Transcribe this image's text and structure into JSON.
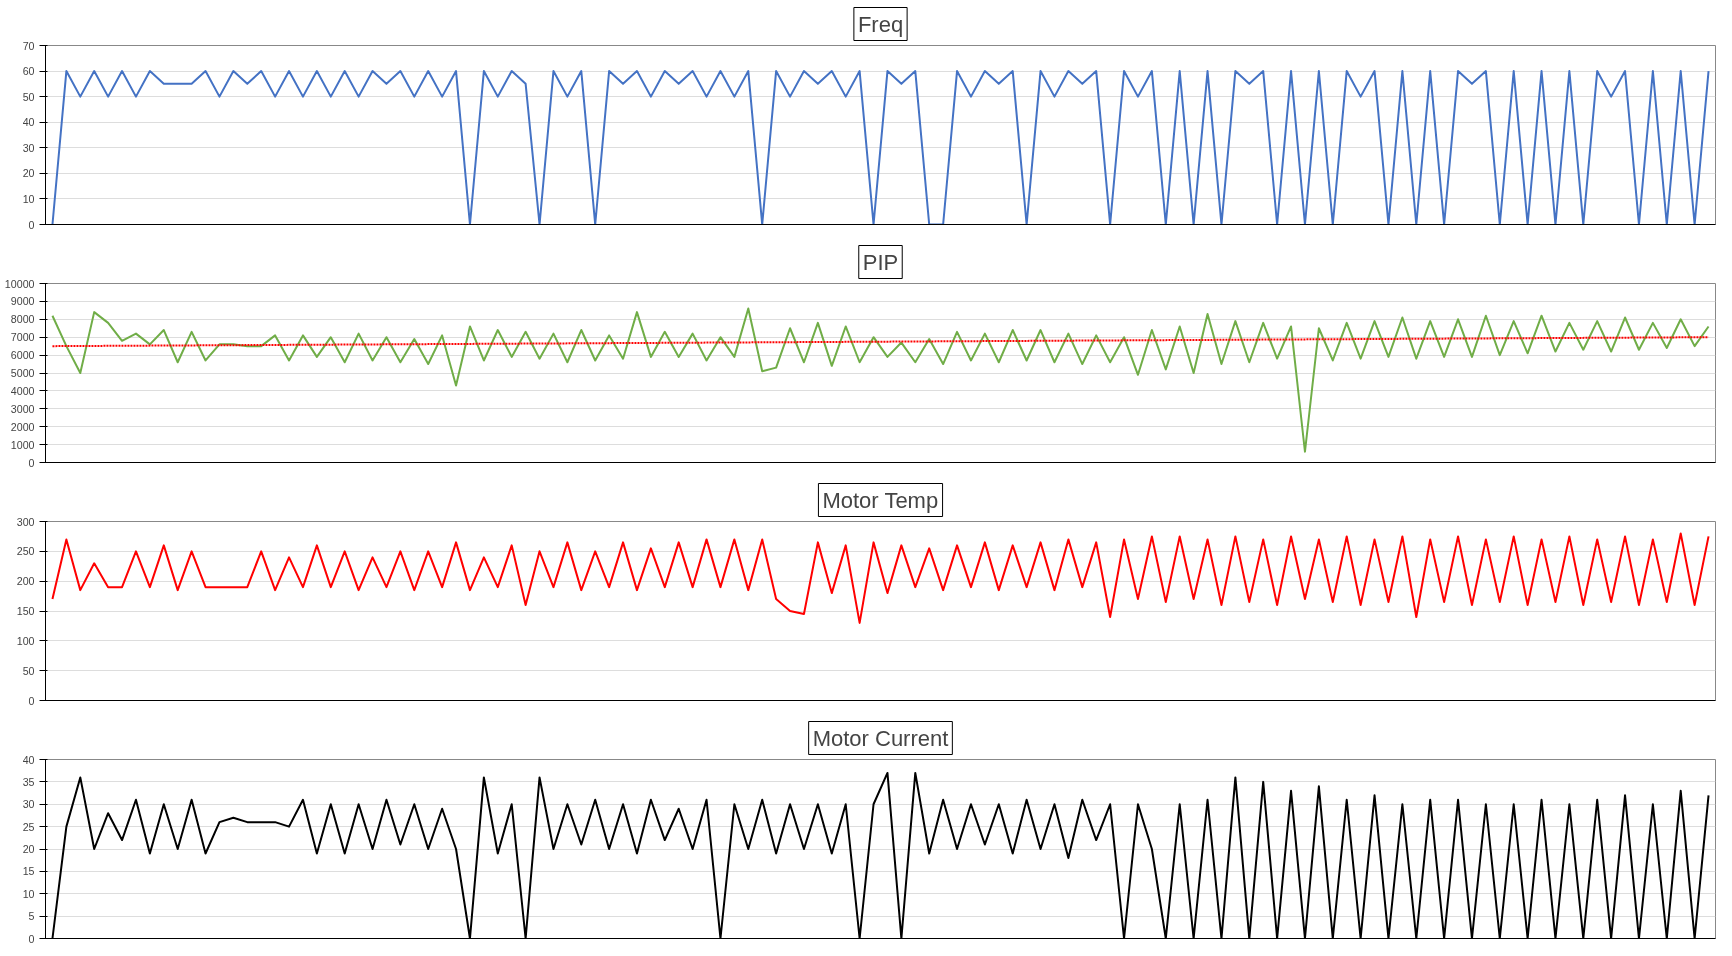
{
  "chart_data": [
    {
      "type": "line",
      "title": "Freq",
      "categories": [
        null,
        null,
        null,
        null,
        null,
        null,
        null,
        null,
        null,
        null,
        null,
        null,
        null,
        null,
        null,
        null,
        null,
        null,
        null,
        null,
        null,
        null,
        null,
        null,
        null,
        null,
        null,
        null,
        null,
        null,
        null,
        null,
        null,
        null,
        null,
        null,
        null,
        null,
        null,
        null,
        null,
        null,
        null,
        null,
        null,
        null,
        null,
        null,
        null,
        null,
        null,
        null,
        null,
        null,
        null,
        null,
        null,
        null,
        null,
        null,
        null,
        null,
        null,
        null,
        null,
        null,
        null,
        null,
        null,
        null,
        null,
        null,
        null,
        null,
        null,
        null,
        null,
        null,
        null,
        null,
        null,
        null,
        null,
        null,
        null,
        null,
        null,
        null,
        null,
        null,
        null,
        null,
        null,
        null,
        null,
        null,
        null,
        null,
        null,
        null,
        null,
        null,
        null,
        null,
        null,
        null,
        null,
        null,
        null,
        null,
        null,
        null,
        null,
        null,
        null,
        null,
        null,
        null,
        null,
        null
      ],
      "series": [
        {
          "color": "#4472c4",
          "values": [
            0,
            60,
            50,
            60,
            50,
            60,
            50,
            60,
            55,
            55,
            55,
            60,
            50,
            60,
            55,
            60,
            50,
            60,
            50,
            60,
            50,
            60,
            50,
            60,
            55,
            60,
            50,
            60,
            50,
            60,
            0,
            60,
            50,
            60,
            55,
            0,
            60,
            50,
            60,
            0,
            60,
            55,
            60,
            50,
            60,
            55,
            60,
            50,
            60,
            50,
            60,
            0,
            60,
            50,
            60,
            55,
            60,
            50,
            60,
            0,
            60,
            55,
            60,
            0,
            0,
            60,
            50,
            60,
            55,
            60,
            0,
            60,
            50,
            60,
            55,
            60,
            0,
            60,
            50,
            60,
            0,
            60,
            0,
            60,
            0,
            60,
            55,
            60,
            0,
            60,
            0,
            60,
            0,
            60,
            50,
            60,
            0,
            60,
            0,
            60,
            0,
            60,
            55,
            60,
            0,
            60,
            0,
            60,
            0,
            60,
            0,
            60,
            50,
            60,
            0,
            60,
            0,
            60,
            0,
            60
          ]
        }
      ],
      "ylim": [
        0,
        70
      ],
      "yticks": [
        0,
        10,
        20,
        30,
        40,
        50,
        60,
        70
      ],
      "grid": "y",
      "tick_labels": "y"
    },
    {
      "type": "line",
      "title": "PIP",
      "categories": [
        null,
        null,
        null,
        null,
        null,
        null,
        null,
        null,
        null,
        null,
        null,
        null,
        null,
        null,
        null,
        null,
        null,
        null,
        null,
        null,
        null,
        null,
        null,
        null,
        null,
        null,
        null,
        null,
        null,
        null,
        null,
        null,
        null,
        null,
        null,
        null,
        null,
        null,
        null,
        null,
        null,
        null,
        null,
        null,
        null,
        null,
        null,
        null,
        null,
        null,
        null,
        null,
        null,
        null,
        null,
        null,
        null,
        null,
        null,
        null,
        null,
        null,
        null,
        null,
        null,
        null,
        null,
        null,
        null,
        null,
        null,
        null,
        null,
        null,
        null,
        null,
        null,
        null,
        null,
        null,
        null,
        null,
        null,
        null,
        null,
        null,
        null,
        null,
        null,
        null,
        null,
        null,
        null,
        null,
        null,
        null,
        null,
        null,
        null,
        null,
        null,
        null,
        null,
        null,
        null,
        null,
        null,
        null,
        null,
        null,
        null,
        null,
        null,
        null,
        null,
        null,
        null,
        null,
        null,
        null
      ],
      "series": [
        {
          "color": "#70ad47",
          "values": [
            8200,
            6500,
            5000,
            8400,
            7800,
            6800,
            7200,
            6600,
            7400,
            5600,
            7300,
            5700,
            6600,
            6600,
            6500,
            6500,
            7100,
            5700,
            7100,
            5900,
            7000,
            5600,
            7200,
            5700,
            7000,
            5600,
            6900,
            5500,
            7100,
            4300,
            7600,
            5700,
            7400,
            5900,
            7300,
            5800,
            7200,
            5600,
            7400,
            5700,
            7100,
            5800,
            8400,
            5900,
            7300,
            5900,
            7200,
            5700,
            7000,
            5900,
            8600,
            5100,
            5300,
            7500,
            5600,
            7800,
            5400,
            7600,
            5600,
            7000,
            5900,
            6700,
            5600,
            6900,
            5500,
            7300,
            5700,
            7200,
            5600,
            7400,
            5700,
            7400,
            5600,
            7200,
            5500,
            7100,
            5600,
            7000,
            4900,
            7400,
            5200,
            7600,
            5000,
            8300,
            5500,
            7900,
            5600,
            7800,
            5800,
            7600,
            600,
            7500,
            5700,
            7800,
            5800,
            7900,
            5900,
            8100,
            5800,
            7900,
            5900,
            8000,
            5900,
            8200,
            6000,
            7900,
            6100,
            8200,
            6200,
            7800,
            6300,
            7900,
            6200,
            8100,
            6300,
            7800,
            6400,
            8000,
            6500,
            7600
          ]
        },
        {
          "type": "line",
          "color": "#ff0000",
          "line_style": "dotted",
          "values": [
            6500,
            null,
            null,
            null,
            null,
            null,
            null,
            null,
            null,
            null,
            null,
            null,
            null,
            null,
            null,
            null,
            null,
            null,
            null,
            null,
            null,
            null,
            null,
            null,
            null,
            null,
            null,
            null,
            null,
            null,
            null,
            null,
            null,
            null,
            null,
            null,
            null,
            null,
            null,
            null,
            null,
            null,
            null,
            null,
            null,
            null,
            null,
            null,
            null,
            null,
            null,
            null,
            null,
            null,
            null,
            null,
            null,
            null,
            null,
            null,
            null,
            null,
            null,
            null,
            null,
            null,
            null,
            null,
            null,
            null,
            null,
            null,
            null,
            null,
            null,
            null,
            null,
            null,
            null,
            null,
            null,
            null,
            null,
            null,
            null,
            null,
            null,
            null,
            null,
            null,
            null,
            null,
            null,
            null,
            null,
            null,
            null,
            null,
            null,
            null,
            null,
            null,
            null,
            null,
            null,
            null,
            null,
            null,
            null,
            null,
            null,
            null,
            null,
            null,
            null,
            null,
            null,
            null,
            null,
            7000
          ]
        }
      ],
      "ylim": [
        0,
        10000
      ],
      "yticks": [
        0,
        1000,
        2000,
        3000,
        4000,
        5000,
        6000,
        7000,
        8000,
        9000,
        10000
      ],
      "grid": "y",
      "tick_labels": "y"
    },
    {
      "type": "line",
      "title": "Motor Temp",
      "categories": [
        null,
        null,
        null,
        null,
        null,
        null,
        null,
        null,
        null,
        null,
        null,
        null,
        null,
        null,
        null,
        null,
        null,
        null,
        null,
        null,
        null,
        null,
        null,
        null,
        null,
        null,
        null,
        null,
        null,
        null,
        null,
        null,
        null,
        null,
        null,
        null,
        null,
        null,
        null,
        null,
        null,
        null,
        null,
        null,
        null,
        null,
        null,
        null,
        null,
        null,
        null,
        null,
        null,
        null,
        null,
        null,
        null,
        null,
        null,
        null,
        null,
        null,
        null,
        null,
        null,
        null,
        null,
        null,
        null,
        null,
        null,
        null,
        null,
        null,
        null,
        null,
        null,
        null,
        null,
        null,
        null,
        null,
        null,
        null,
        null,
        null,
        null,
        null,
        null,
        null,
        null,
        null,
        null,
        null,
        null,
        null,
        null,
        null,
        null,
        null,
        null,
        null,
        null,
        null,
        null,
        null,
        null,
        null,
        null,
        null,
        null,
        null,
        null,
        null,
        null,
        null,
        null,
        null,
        null,
        null
      ],
      "series": [
        {
          "color": "#ff0000",
          "values": [
            170,
            270,
            185,
            230,
            190,
            190,
            250,
            190,
            260,
            185,
            250,
            190,
            190,
            190,
            190,
            250,
            185,
            240,
            190,
            260,
            190,
            250,
            185,
            240,
            190,
            250,
            185,
            250,
            190,
            265,
            185,
            240,
            190,
            260,
            160,
            250,
            190,
            265,
            185,
            250,
            190,
            265,
            185,
            255,
            190,
            265,
            190,
            270,
            190,
            270,
            185,
            270,
            170,
            150,
            145,
            265,
            180,
            260,
            130,
            265,
            180,
            260,
            190,
            255,
            185,
            260,
            190,
            265,
            185,
            260,
            190,
            265,
            185,
            270,
            190,
            265,
            140,
            270,
            170,
            275,
            165,
            275,
            170,
            270,
            160,
            275,
            165,
            270,
            160,
            275,
            170,
            270,
            165,
            275,
            160,
            270,
            165,
            275,
            140,
            270,
            165,
            275,
            160,
            270,
            165,
            275,
            160,
            270,
            165,
            275,
            160,
            270,
            165,
            275,
            160,
            270,
            165,
            280,
            160,
            275
          ]
        }
      ],
      "ylim": [
        0,
        300
      ],
      "yticks": [
        0,
        50,
        100,
        150,
        200,
        250,
        300
      ],
      "grid": "y",
      "tick_labels": "y"
    },
    {
      "type": "line",
      "title": "Motor Current",
      "categories": [
        null,
        null,
        null,
        null,
        null,
        null,
        null,
        null,
        null,
        null,
        null,
        null,
        null,
        null,
        null,
        null,
        null,
        null,
        null,
        null,
        null,
        null,
        null,
        null,
        null,
        null,
        null,
        null,
        null,
        null,
        null,
        null,
        null,
        null,
        null,
        null,
        null,
        null,
        null,
        null,
        null,
        null,
        null,
        null,
        null,
        null,
        null,
        null,
        null,
        null,
        null,
        null,
        null,
        null,
        null,
        null,
        null,
        null,
        null,
        null,
        null,
        null,
        null,
        null,
        null,
        null,
        null,
        null,
        null,
        null,
        null,
        null,
        null,
        null,
        null,
        null,
        null,
        null,
        null,
        null,
        null,
        null,
        null,
        null,
        null,
        null,
        null,
        null,
        null,
        null,
        null,
        null,
        null,
        null,
        null,
        null,
        null,
        null,
        null,
        null,
        null,
        null,
        null,
        null,
        null,
        null,
        null,
        null,
        null,
        null,
        null,
        null,
        null,
        null,
        null,
        null,
        null,
        null,
        null,
        null
      ],
      "series": [
        {
          "color": "#000000",
          "values": [
            0,
            25,
            36,
            20,
            28,
            22,
            31,
            19,
            30,
            20,
            31,
            19,
            26,
            27,
            26,
            26,
            26,
            25,
            31,
            19,
            30,
            19,
            30,
            20,
            31,
            21,
            30,
            20,
            29,
            20,
            0,
            36,
            19,
            30,
            0,
            36,
            20,
            30,
            21,
            31,
            20,
            30,
            19,
            31,
            22,
            29,
            20,
            31,
            0,
            30,
            20,
            31,
            19,
            30,
            20,
            30,
            19,
            30,
            0,
            30,
            37,
            0,
            37,
            19,
            31,
            20,
            30,
            21,
            30,
            19,
            31,
            20,
            30,
            18,
            31,
            22,
            30,
            0,
            30,
            20,
            0,
            30,
            0,
            31,
            0,
            36,
            0,
            35,
            0,
            33,
            0,
            34,
            0,
            31,
            0,
            32,
            0,
            30,
            0,
            31,
            0,
            31,
            0,
            30,
            0,
            30,
            0,
            31,
            0,
            30,
            0,
            31,
            0,
            32,
            0,
            30,
            0,
            33,
            0,
            32
          ]
        }
      ],
      "ylim": [
        0,
        40
      ],
      "yticks": [
        0,
        5,
        10,
        15,
        20,
        25,
        30,
        35,
        40
      ],
      "grid": "y",
      "tick_labels": "y"
    }
  ]
}
